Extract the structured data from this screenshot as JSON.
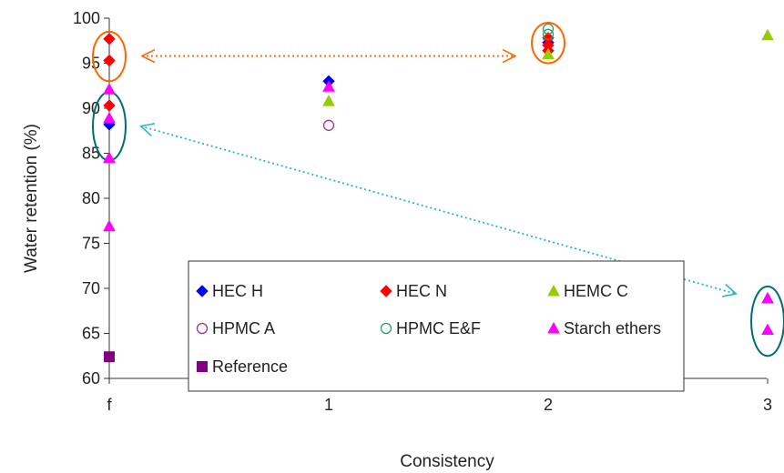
{
  "chart_data": {
    "type": "scatter",
    "xlabel": "Consistency",
    "ylabel": "Water retention (%)",
    "ylim": [
      60,
      100
    ],
    "yticks": [
      60,
      65,
      70,
      75,
      80,
      85,
      90,
      95,
      100
    ],
    "xticks": [
      "f",
      "1",
      "2",
      "3"
    ],
    "x_categories": [
      "f",
      "1",
      "2",
      "3"
    ],
    "grid": false,
    "legend_position": "bottom-center inside plot",
    "series": [
      {
        "name": "HEC H",
        "marker": "diamond",
        "color": "#0000ff",
        "filled": true,
        "points": [
          {
            "x": "f",
            "y": 88.2
          },
          {
            "x": "1",
            "y": 93.0
          },
          {
            "x": "2",
            "y": 97.3
          }
        ]
      },
      {
        "name": "HEC N",
        "marker": "diamond",
        "color": "#ff0000",
        "filled": true,
        "points": [
          {
            "x": "f",
            "y": 97.7
          },
          {
            "x": "f",
            "y": 95.3
          },
          {
            "x": "f",
            "y": 90.3
          },
          {
            "x": "2",
            "y": 97.8
          },
          {
            "x": "2",
            "y": 97.0
          },
          {
            "x": "2",
            "y": 96.4
          }
        ]
      },
      {
        "name": "HEMC C",
        "marker": "triangle",
        "color": "#99cc00",
        "filled": true,
        "points": [
          {
            "x": "1",
            "y": 90.8
          },
          {
            "x": "2",
            "y": 96.0
          },
          {
            "x": "3",
            "y": 98.1
          }
        ]
      },
      {
        "name": "HPMC A",
        "marker": "circle",
        "color": "#993399",
        "filled": false,
        "points": [
          {
            "x": "1",
            "y": 88.1
          }
        ]
      },
      {
        "name": "HPMC E&F",
        "marker": "circle",
        "color": "#339966",
        "filled": false,
        "points": [
          {
            "x": "2",
            "y": 98.8
          },
          {
            "x": "2",
            "y": 98.2
          }
        ]
      },
      {
        "name": "Starch ethers",
        "marker": "triangle",
        "color": "#ff00ff",
        "filled": true,
        "points": [
          {
            "x": "f",
            "y": 92.1
          },
          {
            "x": "f",
            "y": 88.9
          },
          {
            "x": "f",
            "y": 84.5
          },
          {
            "x": "f",
            "y": 76.9
          },
          {
            "x": "1",
            "y": 92.4
          },
          {
            "x": "3",
            "y": 68.9
          },
          {
            "x": "3",
            "y": 65.4
          }
        ]
      },
      {
        "name": "Reference",
        "marker": "square",
        "color": "#800080",
        "filled": true,
        "points": [
          {
            "x": "f",
            "y": 62.4
          }
        ]
      }
    ],
    "legend": [
      "HEC H",
      "HEC N",
      "HEMC C",
      "HPMC A",
      "HPMC E&F",
      "Starch ethers",
      "Reference"
    ],
    "annotations": {
      "ellipses": [
        {
          "around_x": "f",
          "y_range": [
            93.0,
            98.5
          ],
          "color": "#ff6600"
        },
        {
          "around_x": "2",
          "y_range": [
            95.0,
            99.5
          ],
          "color": "#ff6600"
        },
        {
          "around_x": "f",
          "y_range": [
            84.2,
            91.8
          ],
          "color": "#006e6e"
        },
        {
          "around_x": "3",
          "y_range": [
            62.5,
            70.2
          ],
          "color": "#006e6e"
        }
      ],
      "arrows": [
        {
          "from": {
            "x": "f",
            "y": 95.8
          },
          "to": {
            "x": "2",
            "y": 95.8
          },
          "style": "dotted, double-headed",
          "color": "#ff6600"
        },
        {
          "from": {
            "x": "f",
            "y": 89.0
          },
          "to": {
            "x": "3",
            "y": 68.4
          },
          "style": "dotted, double-headed",
          "color": "#2ab7ba"
        }
      ]
    }
  }
}
